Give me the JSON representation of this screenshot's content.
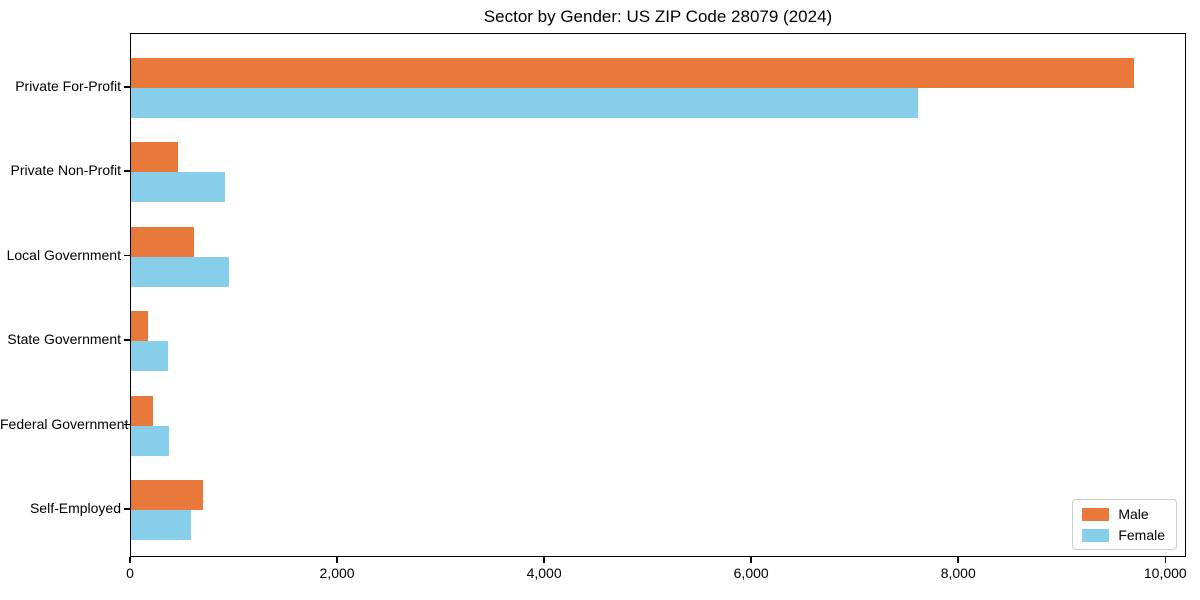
{
  "chart_data": {
    "type": "bar",
    "orientation": "horizontal",
    "title": "Sector by Gender: US ZIP Code 28079 (2024)",
    "categories": [
      "Private For-Profit",
      "Private Non-Profit",
      "Local Government",
      "State Government",
      "Federal Government",
      "Self-Employed"
    ],
    "series": [
      {
        "name": "Male",
        "color": "#e8793b",
        "values": [
          9690,
          455,
          605,
          165,
          210,
          700
        ]
      },
      {
        "name": "Female",
        "color": "#87ceeb",
        "values": [
          7600,
          910,
          950,
          360,
          370,
          575
        ]
      }
    ],
    "xlabel": "",
    "ylabel": "",
    "xlim": [
      0,
      10200
    ],
    "xticks": {
      "values": [
        0,
        2000,
        4000,
        6000,
        8000,
        10000
      ],
      "labels": [
        "0",
        "2,000",
        "4,000",
        "6,000",
        "8,000",
        "10,000"
      ]
    },
    "grid": false,
    "legend": {
      "position": "lower right"
    },
    "colors": {
      "spine": "#000000",
      "background": "#ffffff",
      "legend_border": "#cccccc"
    }
  }
}
